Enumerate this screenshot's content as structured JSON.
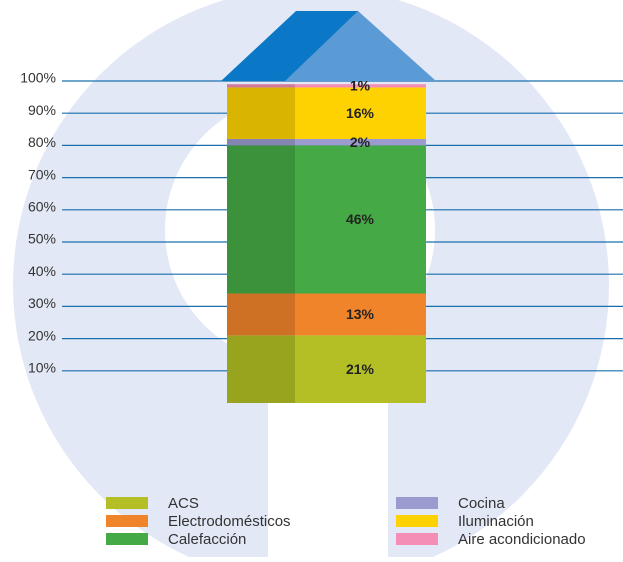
{
  "chart_data": {
    "type": "stacked-bar",
    "series": [
      {
        "name": "ACS",
        "color": "#b3bf24",
        "values": [
          21
        ],
        "value_labels": [
          "21%"
        ]
      },
      {
        "name": "Electrodomésticos",
        "color": "#f0842a",
        "values": [
          13
        ],
        "value_labels": [
          "13%"
        ]
      },
      {
        "name": "Calefacción",
        "color": "#45aa45",
        "values": [
          46
        ],
        "value_labels": [
          "46%"
        ]
      },
      {
        "name": "Cocina",
        "color": "#9b9bcf",
        "values": [
          2
        ],
        "value_labels": [
          "2%"
        ]
      },
      {
        "name": "Iluminación",
        "color": "#fdd200",
        "values": [
          16
        ],
        "value_labels": [
          "16%"
        ]
      },
      {
        "name": "Aire acondicionado",
        "color": "#f48eb7",
        "values": [
          1
        ],
        "value_labels": [
          "1%"
        ]
      }
    ],
    "ylim": [
      0,
      100
    ],
    "yticks": [
      {
        "value": 10,
        "label": "10%"
      },
      {
        "value": 20,
        "label": "20%"
      },
      {
        "value": 30,
        "label": "30%"
      },
      {
        "value": 40,
        "label": "40%"
      },
      {
        "value": 50,
        "label": "50%"
      },
      {
        "value": 60,
        "label": "60%"
      },
      {
        "value": 70,
        "label": "70%"
      },
      {
        "value": 80,
        "label": "80%"
      },
      {
        "value": 90,
        "label": "90%"
      },
      {
        "value": 100,
        "label": "100%"
      }
    ],
    "grid": true
  }
}
